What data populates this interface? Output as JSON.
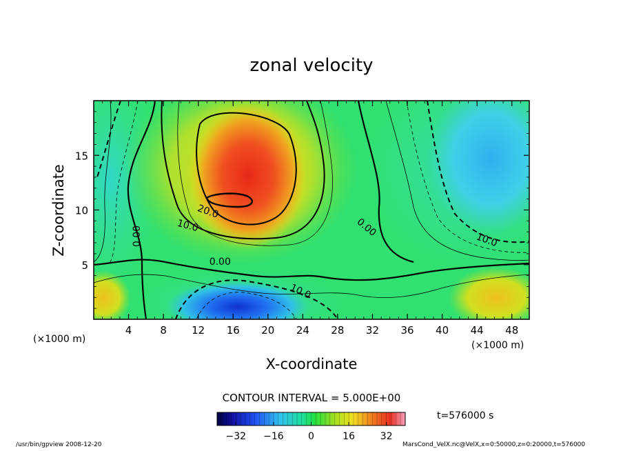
{
  "chart_data": {
    "type": "contour",
    "title": "zonal velocity",
    "xlabel": "X-coordinate",
    "ylabel": "Z-coordinate",
    "x_unit_label": "(×1000 m)",
    "xlim": [
      0,
      50
    ],
    "ylim": [
      0,
      20
    ],
    "x_ticks": [
      4,
      8,
      12,
      16,
      20,
      24,
      28,
      32,
      36,
      40,
      44,
      48
    ],
    "y_ticks": [
      5,
      10,
      15
    ],
    "contour_interval_label": "CONTOUR INTERVAL = 5.000E+00",
    "contour_labels": [
      {
        "text": "20.0",
        "x": 13.0,
        "z": 9.6,
        "angle": 20
      },
      {
        "text": "10.0",
        "x": 10.7,
        "z": 8.3,
        "angle": 15
      },
      {
        "text": "0.00",
        "x": 5.3,
        "z": 7.6,
        "angle": -90
      },
      {
        "text": "0.00",
        "x": 14.5,
        "z": 5.0,
        "angle": 0
      },
      {
        "text": "0.00",
        "x": 31.1,
        "z": 8.2,
        "angle": 40
      },
      {
        "text": "10.0",
        "x": 23.6,
        "z": 2.3,
        "angle": 25
      },
      {
        "text": "10.0",
        "x": 45.0,
        "z": 7.0,
        "angle": 20
      }
    ],
    "features": [
      {
        "name": "positive jet core",
        "x": 18,
        "z": 12.5,
        "max": 35
      },
      {
        "name": "negative low-level core",
        "x": 17,
        "z": 1.2,
        "min": -25
      },
      {
        "name": "negative upper-right region",
        "x": 45,
        "z": 15,
        "min": -15
      },
      {
        "name": "positive lower-right region",
        "x": 47,
        "z": 2,
        "max": 15
      }
    ],
    "colorbar": {
      "range": [
        -40,
        40
      ],
      "ticks": [
        -32,
        -16,
        0,
        16,
        32
      ]
    }
  },
  "time_label": "t=576000 s",
  "footer_left": "/usr/bin/gpview  2008-12-20",
  "footer_right": "MarsCond_VelX.nc@VelX,x=0:50000,z=0:20000,t=576000",
  "colors": {
    "deep_negative": "#1020c0",
    "zero": "#00e060",
    "positive": "#e84020"
  }
}
